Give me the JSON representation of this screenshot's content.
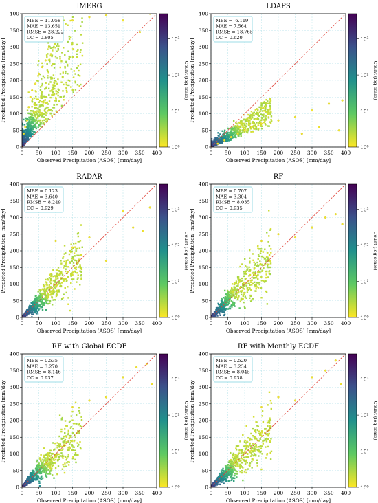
{
  "chart_data": [
    {
      "type": "scatter",
      "title": "IMERG",
      "xlabel": "Observed Precipitation (ASOS) [mm/day]",
      "ylabel": "Predicted Precipitation [mm/day]",
      "xlim": [
        0,
        400
      ],
      "ylim": [
        0,
        400
      ],
      "xticks": [
        "0",
        "50",
        "100",
        "150",
        "200",
        "250",
        "300",
        "350",
        "400"
      ],
      "yticks": [
        "0",
        "50",
        "100",
        "150",
        "200",
        "250",
        "300",
        "350",
        "400"
      ],
      "grid": true,
      "reference_line": "1:1",
      "stats": [
        "MBE = 11.058",
        "MAE = 13.651",
        "RMSE = 28.222",
        "CC = 0.805"
      ],
      "colorbar": {
        "label": "Count (log scale)",
        "scale": "log",
        "ticks": [
          "10⁰",
          "10¹",
          "10²",
          "10³"
        ],
        "range": [
          1,
          5000
        ]
      },
      "pattern": "overestimation",
      "points": [
        [
          5,
          40
        ],
        [
          10,
          60
        ],
        [
          15,
          80
        ],
        [
          20,
          120
        ],
        [
          25,
          150
        ],
        [
          30,
          170
        ],
        [
          40,
          190
        ],
        [
          50,
          220
        ],
        [
          60,
          240
        ],
        [
          70,
          260
        ],
        [
          80,
          300
        ],
        [
          90,
          320
        ],
        [
          100,
          340
        ],
        [
          120,
          360
        ],
        [
          150,
          380
        ],
        [
          200,
          390
        ],
        [
          250,
          395
        ],
        [
          300,
          380
        ],
        [
          350,
          345
        ],
        [
          380,
          400
        ]
      ]
    },
    {
      "type": "scatter",
      "title": "LDAPS",
      "xlabel": "Observed Precipitation (ASOS) [mm/day]",
      "ylabel": "Predicted Precipitation [mm/day]",
      "xlim": [
        0,
        400
      ],
      "ylim": [
        0,
        400
      ],
      "xticks": [
        "0",
        "50",
        "100",
        "150",
        "200",
        "250",
        "300",
        "350",
        "400"
      ],
      "yticks": [
        "0",
        "50",
        "100",
        "150",
        "200",
        "250",
        "300",
        "350",
        "400"
      ],
      "grid": true,
      "reference_line": "1:1",
      "stats": [
        "MBE = -6.119",
        "MAE = 7.564",
        "RMSE = 18.765",
        "CC = 0.620"
      ],
      "colorbar": {
        "label": "Count (log scale)",
        "scale": "log",
        "ticks": [
          "10⁰",
          "10¹",
          "10²",
          "10³"
        ],
        "range": [
          1,
          5000
        ]
      },
      "pattern": "underestimation",
      "points": [
        [
          20,
          10
        ],
        [
          40,
          20
        ],
        [
          60,
          30
        ],
        [
          80,
          40
        ],
        [
          100,
          50
        ],
        [
          120,
          60
        ],
        [
          150,
          70
        ],
        [
          200,
          80
        ],
        [
          250,
          90
        ],
        [
          300,
          110
        ],
        [
          350,
          130
        ],
        [
          390,
          140
        ],
        [
          320,
          60
        ],
        [
          270,
          40
        ],
        [
          380,
          50
        ]
      ]
    },
    {
      "type": "scatter",
      "title": "RADAR",
      "xlabel": "Observed Precipitation (ASOS) [mm/day]",
      "ylabel": "Predicted Precipitation [mm/day]",
      "xlim": [
        0,
        400
      ],
      "ylim": [
        0,
        400
      ],
      "xticks": [
        "0",
        "50",
        "100",
        "150",
        "200",
        "250",
        "300",
        "350",
        "400"
      ],
      "yticks": [
        "0",
        "50",
        "100",
        "150",
        "200",
        "250",
        "300",
        "350",
        "400"
      ],
      "grid": true,
      "reference_line": "1:1",
      "stats": [
        "MBE = 0.123",
        "MAE = 3.640",
        "RMSE = 8.249",
        "CC = 0.929"
      ],
      "colorbar": {
        "label": "Count (log scale)",
        "scale": "log",
        "ticks": [
          "10⁰",
          "10¹",
          "10²",
          "10³"
        ],
        "range": [
          1,
          5000
        ]
      },
      "pattern": "tight",
      "points": [
        [
          100,
          230
        ],
        [
          150,
          210
        ],
        [
          200,
          240
        ],
        [
          250,
          170
        ],
        [
          300,
          320
        ],
        [
          330,
          270
        ],
        [
          360,
          260
        ],
        [
          380,
          330
        ]
      ]
    },
    {
      "type": "scatter",
      "title": "RF",
      "xlabel": "Observed Precipitation (ASOS) [mm/day]",
      "ylabel": "Predicted Precipitation [mm/day]",
      "xlim": [
        0,
        400
      ],
      "ylim": [
        0,
        400
      ],
      "xticks": [
        "0",
        "50",
        "100",
        "150",
        "200",
        "250",
        "300",
        "350",
        "400"
      ],
      "yticks": [
        "0",
        "50",
        "100",
        "150",
        "200",
        "250",
        "300",
        "350",
        "400"
      ],
      "grid": true,
      "reference_line": "1:1",
      "stats": [
        "MBE = 0.707",
        "MAE = 3.304",
        "RMSE = 8.035",
        "CC = 0.935"
      ],
      "colorbar": {
        "label": "Count (log scale)",
        "scale": "log",
        "ticks": [
          "10⁰",
          "10¹",
          "10²",
          "10³"
        ],
        "range": [
          1,
          5000
        ]
      },
      "pattern": "tight",
      "points": [
        [
          150,
          230
        ],
        [
          200,
          250
        ],
        [
          250,
          240
        ],
        [
          300,
          270
        ],
        [
          340,
          300
        ],
        [
          370,
          310
        ],
        [
          390,
          280
        ]
      ]
    },
    {
      "type": "scatter",
      "title": "RF with Global ECDF",
      "xlabel": "Observed Precipitation (ASOS) [mm/day]",
      "ylabel": "Predicted Precipitation [mm/day]",
      "xlim": [
        0,
        400
      ],
      "ylim": [
        0,
        400
      ],
      "xticks": [
        "0",
        "50",
        "100",
        "150",
        "200",
        "250",
        "300",
        "350",
        "400"
      ],
      "yticks": [
        "0",
        "50",
        "100",
        "150",
        "200",
        "250",
        "300",
        "350",
        "400"
      ],
      "grid": true,
      "reference_line": "1:1",
      "stats": [
        "MBE = 0.535",
        "MAE = 3.270",
        "RMSE = 8.146",
        "CC = 0.937"
      ],
      "colorbar": {
        "label": "Count (log scale)",
        "scale": "log",
        "ticks": [
          "10⁰",
          "10¹",
          "10²",
          "10³"
        ],
        "range": [
          1,
          5000
        ]
      },
      "pattern": "tight",
      "points": [
        [
          150,
          240
        ],
        [
          200,
          260
        ],
        [
          250,
          270
        ],
        [
          300,
          330
        ],
        [
          340,
          360
        ],
        [
          370,
          370
        ],
        [
          385,
          310
        ]
      ]
    },
    {
      "type": "scatter",
      "title": "RF with Monthly ECDF",
      "xlabel": "Observed Precipitation (ASOS) [mm/day]",
      "ylabel": "Predicted Precipitation [mm/day]",
      "xlim": [
        0,
        400
      ],
      "ylim": [
        0,
        400
      ],
      "xticks": [
        "0",
        "50",
        "100",
        "150",
        "200",
        "250",
        "300",
        "350",
        "400"
      ],
      "yticks": [
        "0",
        "50",
        "100",
        "150",
        "200",
        "250",
        "300",
        "350",
        "400"
      ],
      "grid": true,
      "reference_line": "1:1",
      "stats": [
        "MBE = 0.520",
        "MAE = 3.234",
        "RMSE = 8.045",
        "CC = 0.938"
      ],
      "colorbar": {
        "label": "Count (log scale)",
        "scale": "log",
        "ticks": [
          "10⁰",
          "10¹",
          "10²",
          "10³"
        ],
        "range": [
          1,
          5000
        ]
      },
      "pattern": "tight",
      "points": [
        [
          150,
          240
        ],
        [
          200,
          270
        ],
        [
          250,
          260
        ],
        [
          300,
          330
        ],
        [
          340,
          350
        ],
        [
          370,
          380
        ],
        [
          385,
          310
        ]
      ]
    }
  ]
}
